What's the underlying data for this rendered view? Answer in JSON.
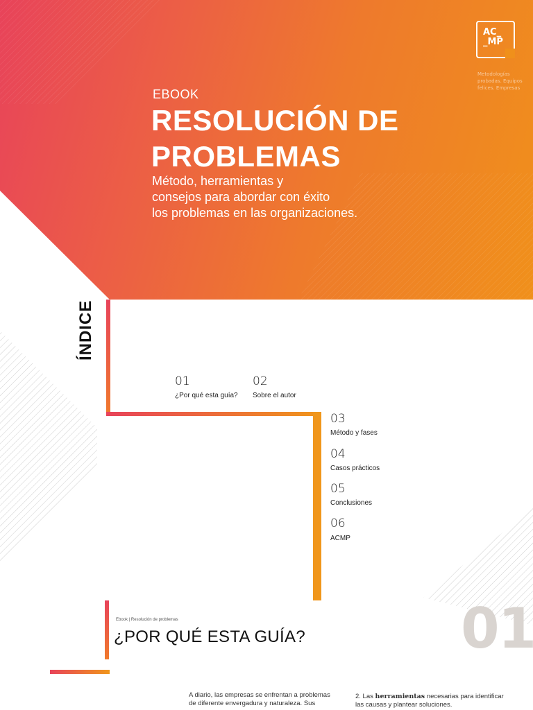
{
  "cover": {
    "logo_line1": "AC_",
    "logo_line2": "_MP",
    "tagline": "Metodologías probadas. Equipos felices. Empresas",
    "ebook_label": "EBOOK",
    "title_line1": "RESOLUCIÓN DE",
    "title_line2": "PROBLEMAS",
    "subtitle_line1": "Método, herramientas y",
    "subtitle_line2": "consejos para abordar con éxito",
    "subtitle_line3": "los problemas en las organizaciones.",
    "colors": {
      "gradient_start": "#e8435a",
      "gradient_end": "#f0901b"
    }
  },
  "index": {
    "heading": "ÍNDICE",
    "items": [
      {
        "num": "01",
        "label": "¿Por qué esta guía?"
      },
      {
        "num": "02",
        "label": "Sobre el autor"
      },
      {
        "num": "03",
        "label": "Método y fases"
      },
      {
        "num": "04",
        "label": "Casos prácticos"
      },
      {
        "num": "05",
        "label": "Conclusiones"
      },
      {
        "num": "06",
        "label": "ACMP"
      }
    ]
  },
  "section": {
    "breadcrumb": "Ebook | Resolución de problemas",
    "title": "¿POR QUÉ ESTA GUÍA?",
    "number": "01",
    "para_left_line1": "A diario, las empresas se enfrentan a problemas",
    "para_left_line2": "de diferente envergadura y naturaleza. Sus",
    "para_right_prefix": "2. Las ",
    "para_right_bold": "herramientas",
    "para_right_suffix": " necesarias para identificar",
    "para_right_line2": "las causas y plantear soluciones."
  }
}
